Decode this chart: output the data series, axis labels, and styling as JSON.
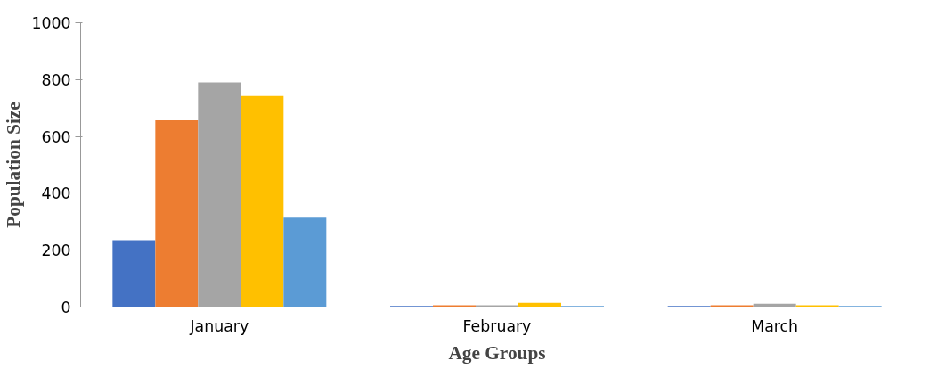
{
  "chart_data": {
    "type": "bar",
    "xlabel": "Age Groups",
    "ylabel": "Population Size",
    "categories": [
      "January",
      "February",
      "March"
    ],
    "series": [
      {
        "color": "#4472c4",
        "values": [
          235,
          4,
          4
        ]
      },
      {
        "color": "#ed7d31",
        "values": [
          657,
          6,
          6
        ]
      },
      {
        "color": "#a5a5a5",
        "values": [
          790,
          6,
          12
        ]
      },
      {
        "color": "#ffc000",
        "values": [
          742,
          15,
          6
        ]
      },
      {
        "color": "#5b9bd5",
        "values": [
          314,
          4,
          4
        ]
      }
    ],
    "ylim": [
      0,
      1000
    ],
    "yticks": [
      0,
      200,
      400,
      600,
      800,
      1000
    ],
    "grid": false
  }
}
